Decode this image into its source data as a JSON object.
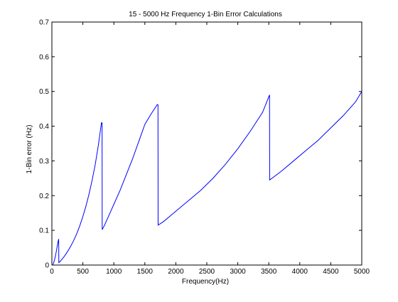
{
  "chart_data": {
    "type": "line",
    "title": "15 - 5000 Hz Frequency 1-Bin Error Calculations",
    "xlabel": "Frequency(Hz)",
    "ylabel": "1-Bin error (Hz)",
    "xlim": [
      0,
      5000
    ],
    "ylim": [
      0,
      0.7
    ],
    "xticks": [
      0,
      500,
      1000,
      1500,
      2000,
      2500,
      3000,
      3500,
      4000,
      4500,
      5000
    ],
    "yticks": [
      0,
      0.1,
      0.2,
      0.3,
      0.4,
      0.5,
      0.6,
      0.7
    ],
    "grid": false,
    "line_color": "#0000ff",
    "series": [
      {
        "x": [
          15,
          25,
          40,
          55,
          70,
          85,
          100,
          110,
          112,
          125,
          150,
          200,
          250,
          300,
          350,
          400,
          450,
          500,
          550,
          600,
          650,
          700,
          750,
          800,
          810,
          812,
          850,
          900,
          950,
          1000,
          1100,
          1200,
          1300,
          1400,
          1500,
          1600,
          1700,
          1712,
          1714,
          1800,
          1900,
          2000,
          2200,
          2400,
          2600,
          2800,
          3000,
          3200,
          3400,
          3512,
          3514,
          3700,
          3900,
          4100,
          4300,
          4500,
          4700,
          4900,
          5000
        ],
        "y": [
          0.0,
          0.005,
          0.013,
          0.024,
          0.038,
          0.053,
          0.068,
          0.075,
          0.007,
          0.009,
          0.014,
          0.025,
          0.038,
          0.053,
          0.07,
          0.09,
          0.113,
          0.14,
          0.17,
          0.205,
          0.245,
          0.29,
          0.345,
          0.41,
          0.41,
          0.102,
          0.115,
          0.135,
          0.155,
          0.175,
          0.215,
          0.26,
          0.305,
          0.355,
          0.405,
          0.435,
          0.462,
          0.462,
          0.115,
          0.125,
          0.14,
          0.155,
          0.185,
          0.215,
          0.25,
          0.29,
          0.335,
          0.385,
          0.44,
          0.49,
          0.245,
          0.27,
          0.3,
          0.33,
          0.36,
          0.395,
          0.43,
          0.47,
          0.5
        ]
      }
    ]
  }
}
